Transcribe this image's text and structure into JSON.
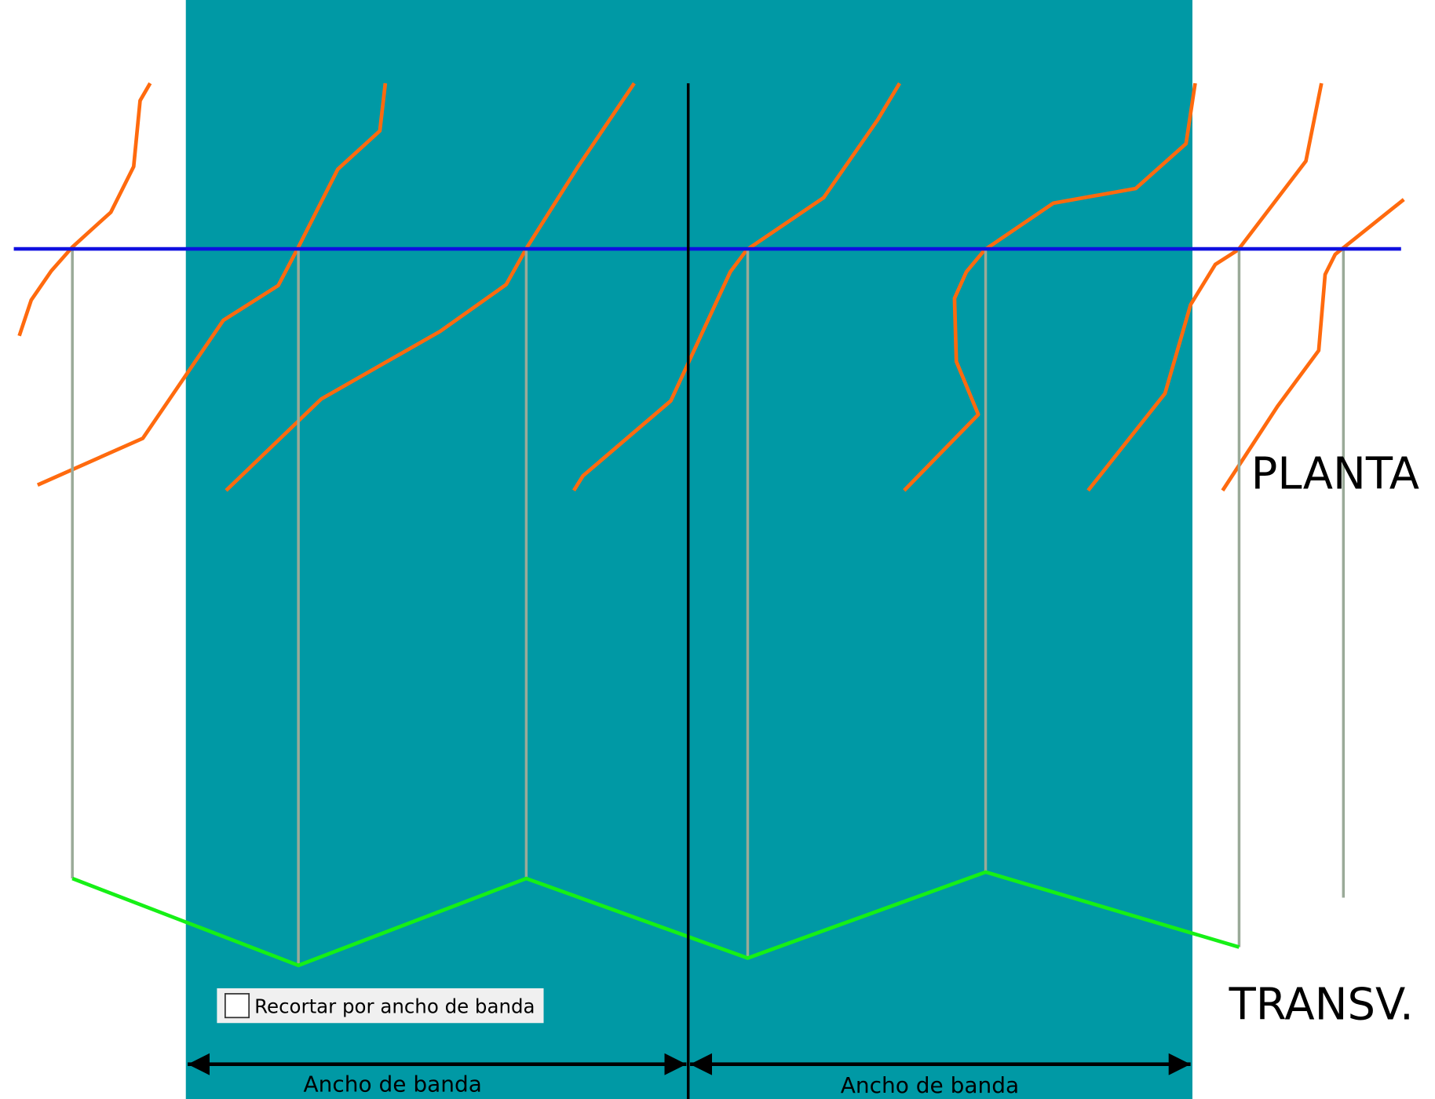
{
  "labels": {
    "plan": "PLANTA",
    "cross_section": "TRANSV."
  },
  "checkbox": {
    "label": "Recortar por ancho de banda",
    "checked": false
  },
  "dimensions": [
    {
      "label": "Ancho de banda"
    },
    {
      "label": "Ancho de banda"
    }
  ]
}
